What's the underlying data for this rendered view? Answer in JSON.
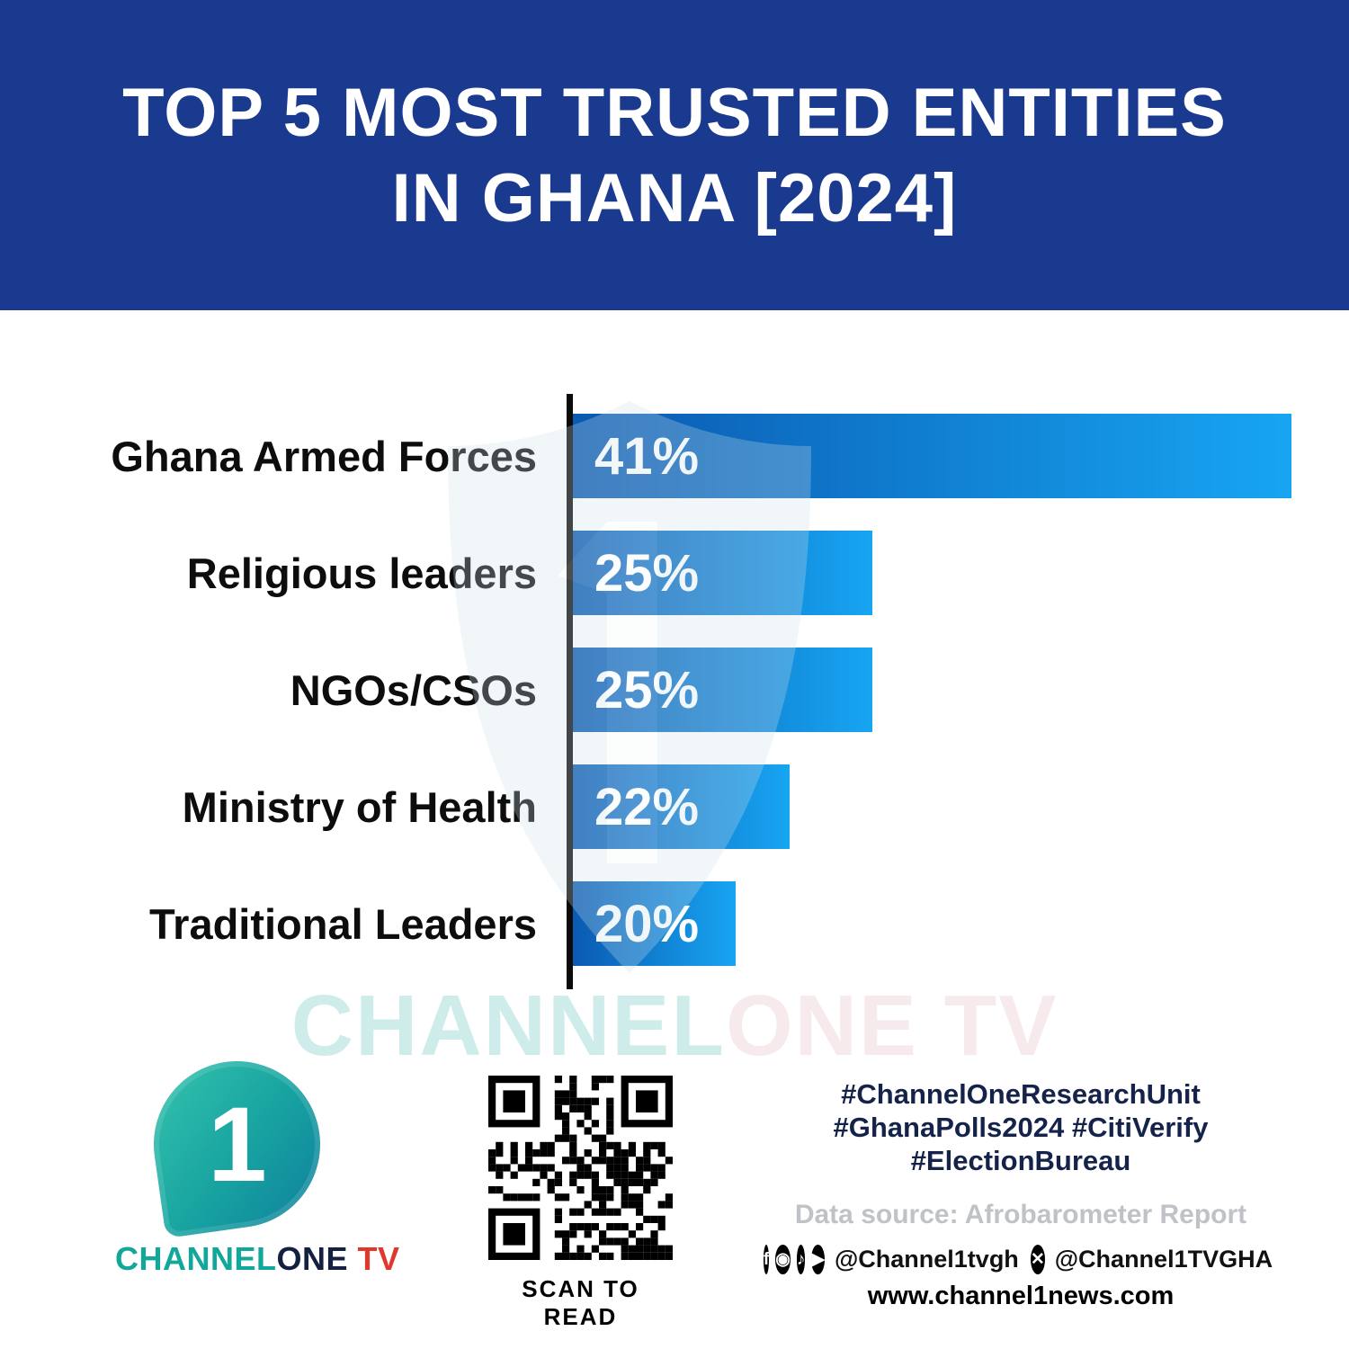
{
  "header": {
    "title_line1": "TOP 5 MOST TRUSTED ENTITIES",
    "title_line2": "IN GHANA [2024]"
  },
  "chart_data": {
    "type": "bar",
    "orientation": "horizontal",
    "title": "Top 5 Most Trusted Entities in Ghana [2024]",
    "categories": [
      "Ghana Armed Forces",
      "Religious leaders",
      "NGOs/CSOs",
      "Ministry of Health",
      "Traditional Leaders"
    ],
    "values": [
      41,
      25,
      25,
      22,
      20
    ],
    "value_labels": [
      "41%",
      "25%",
      "25%",
      "22%",
      "20%"
    ],
    "unit": "%",
    "xlim": [
      0,
      41
    ],
    "grid": false,
    "legend": false,
    "bar_width_fractions": [
      1.0,
      0.42,
      0.42,
      0.305,
      0.23
    ]
  },
  "watermark": {
    "part1": "CHANNEL",
    "part2": "ONE TV"
  },
  "footer": {
    "logo": {
      "one_glyph": "1",
      "brand_channel": "CHANNEL",
      "brand_one": "ONE",
      "brand_tv": " TV"
    },
    "qr_caption": "SCAN TO READ",
    "hashtags_line1": "#ChannelOneResearchUnit",
    "hashtags_line2": "#GhanaPolls2024 #CitiVerify",
    "hashtags_line3": "#ElectionBureau",
    "data_source": "Data source: Afrobarometer Report",
    "social": [
      {
        "icon": "facebook-icon",
        "glyph": "f"
      },
      {
        "icon": "instagram-icon",
        "glyph": "◉"
      },
      {
        "icon": "tiktok-icon",
        "glyph": "♪"
      },
      {
        "icon": "youtube-icon",
        "glyph": "▶"
      },
      {
        "handle": "@Channel1tvgh"
      },
      {
        "icon": "x-icon",
        "glyph": "✕"
      },
      {
        "handle": "@Channel1TVGHA"
      }
    ],
    "website": "www.channel1news.com"
  },
  "colors": {
    "header_bg": "#1a3a8f",
    "bar_start": "#0a59b0",
    "bar_end": "#17a5f2",
    "label_color": "#0d0d0d",
    "hashtag_color": "#15234a",
    "source_color": "#bfc3c8",
    "brand_teal": "#12a79b",
    "brand_navy": "#13203f",
    "brand_red": "#e2372b"
  }
}
